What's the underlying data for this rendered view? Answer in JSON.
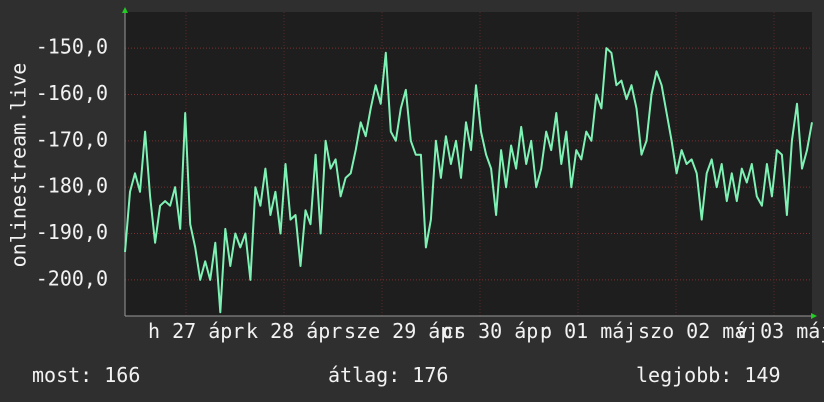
{
  "y_axis_label": "onlinestream.live",
  "chart_data": {
    "type": "line",
    "values": [
      -194,
      -181,
      -177,
      -181,
      -168,
      -182,
      -192,
      -184,
      -183,
      -184,
      -180,
      -189,
      -164,
      -188,
      -193,
      -200,
      -196,
      -200,
      -192,
      -207,
      -189,
      -197,
      -190,
      -193,
      -190,
      -200,
      -180,
      -184,
      -176,
      -186,
      -181,
      -190,
      -175,
      -187,
      -186,
      -197,
      -185,
      -188,
      -173,
      -190,
      -170,
      -176,
      -174,
      -182,
      -178,
      -177,
      -172,
      -166,
      -169,
      -163,
      -158,
      -162,
      -151,
      -168,
      -170,
      -163,
      -159,
      -170,
      -173,
      -173,
      -193,
      -187,
      -170,
      -178,
      -169,
      -175,
      -170,
      -178,
      -166,
      -172,
      -158,
      -168,
      -173,
      -176,
      -186,
      -172,
      -180,
      -171,
      -176,
      -167,
      -175,
      -170,
      -180,
      -176,
      -168,
      -172,
      -164,
      -175,
      -168,
      -180,
      -172,
      -174,
      -168,
      -170,
      -160,
      -163,
      -150,
      -151,
      -158,
      -157,
      -161,
      -158,
      -163,
      -173,
      -170,
      -160,
      -155,
      -158,
      -164,
      -170,
      -177,
      -172,
      -175,
      -174,
      -177,
      -187,
      -177,
      -174,
      -180,
      -175,
      -183,
      -177,
      -183,
      -176,
      -179,
      -175,
      -182,
      -184,
      -175,
      -182,
      -172,
      -173,
      -186,
      -170,
      -162,
      -176,
      -172,
      -166
    ],
    "color": "#7ef2b4",
    "ylim": [
      -207.8,
      -142.2
    ],
    "yticks": [
      {
        "value": -150,
        "label": "-150,0"
      },
      {
        "value": -160,
        "label": "-160,0"
      },
      {
        "value": -170,
        "label": "-170,0"
      },
      {
        "value": -180,
        "label": "-180,0"
      },
      {
        "value": -190,
        "label": "-190,0"
      },
      {
        "value": -200,
        "label": "-200,0"
      }
    ],
    "grid": true,
    "x_labels": [
      "h 27 ápr",
      "k 28 ápr",
      "sze 29 ápr",
      "cs 30 ápr",
      "p 01 máj",
      "szo 02 máj",
      "v 03 máj"
    ]
  },
  "footer": {
    "current": "most: 166",
    "average": "átlag: 176",
    "best": "legjobb: 149"
  }
}
